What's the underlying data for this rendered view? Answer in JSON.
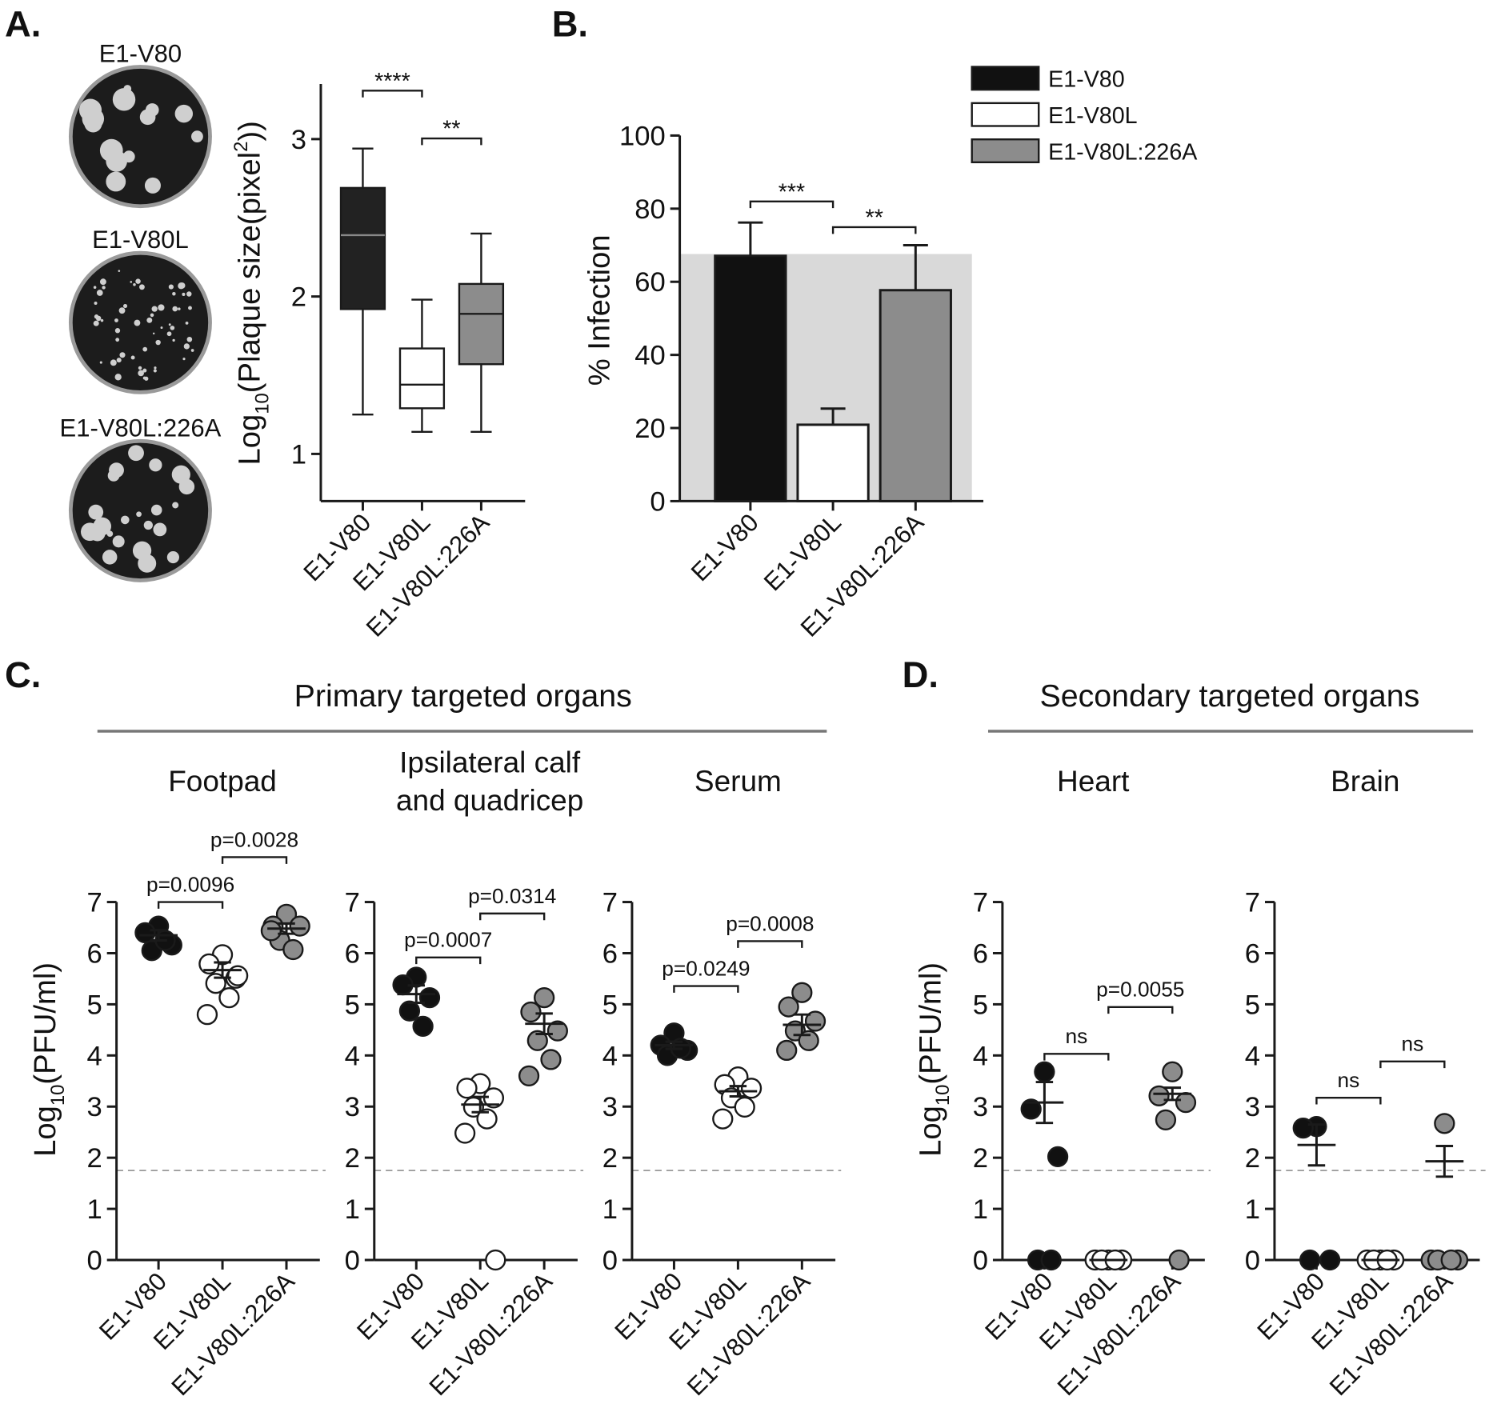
{
  "figure": {
    "panels": [
      "A.",
      "B.",
      "C.",
      "D."
    ],
    "groups": [
      "Primary targeted organs",
      "Secondary targeted organs"
    ]
  },
  "chart_data": [
    {
      "type": "box",
      "categories": [
        "E1-V80",
        "E1-V80L",
        "E1-V80L:226A"
      ],
      "colors": [
        "#222222",
        "#ffffff",
        "#8c8c8c"
      ],
      "min": [
        1.25,
        1.14,
        1.14
      ],
      "q1": [
        1.92,
        1.29,
        1.57
      ],
      "median": [
        2.39,
        1.44,
        1.89
      ],
      "q3": [
        2.69,
        1.67,
        2.08
      ],
      "max": [
        2.94,
        1.98,
        2.4
      ],
      "ylim": [
        0.7,
        3.35
      ],
      "yticks": [
        1,
        2,
        3
      ],
      "ylabel": [
        "Log",
        "10",
        "(Plaque size(pixel",
        "2",
        "))"
      ],
      "annotations": [
        "****",
        "**"
      ]
    },
    {
      "type": "bar",
      "categories": [
        "E1-V80",
        "E1-V80L",
        "E1-V80L:226A"
      ],
      "colors": [
        "#111111",
        "#ffffff",
        "#8c8c8c"
      ],
      "values": [
        67.1,
        20.9,
        57.7
      ],
      "errors": [
        9.1,
        4.4,
        12.3
      ],
      "reference": 67.6,
      "reference_color": "#d9d9d9",
      "ylim": [
        0,
        100
      ],
      "yticks": [
        0,
        20,
        40,
        60,
        80,
        100
      ],
      "ylabel": "% Infection",
      "legend": "upper-right",
      "annotations": [
        "***",
        "**"
      ]
    },
    {
      "type": "dot",
      "title": [
        "Footpad"
      ],
      "categories": [
        "E1-V80",
        "E1-V80L",
        "E1-V80L:226A"
      ],
      "colors": [
        "#111111",
        "#ffffff",
        "#8c8c8c"
      ],
      "points": [
        [
          6.53,
          6.4,
          6.16,
          6.05,
          6.25
        ],
        [
          5.97,
          5.79,
          5.51,
          5.41,
          5.13,
          4.8,
          5.56
        ],
        [
          6.76,
          6.53,
          6.53,
          6.25,
          6.07,
          6.44
        ]
      ],
      "means": [
        6.35,
        5.67,
        6.48
      ],
      "errors": [
        0.1,
        0.15,
        0.1
      ],
      "detection_limit": 1.75,
      "ylim": [
        0,
        7
      ],
      "yticks": [
        0,
        1,
        2,
        3,
        4,
        5,
        6,
        7
      ],
      "ylabel": [
        "Log",
        "10",
        "(PFU/ml)"
      ],
      "annotations": [
        "p=0.0096",
        "p=0.0028"
      ]
    },
    {
      "type": "dot",
      "title": [
        "Ipsilateral calf",
        "and quadricep"
      ],
      "categories": [
        "E1-V80",
        "E1-V80L",
        "E1-V80L:226A"
      ],
      "colors": [
        "#111111",
        "#ffffff",
        "#8c8c8c"
      ],
      "points": [
        [
          5.53,
          5.38,
          5.13,
          4.87,
          4.57
        ],
        [
          3.45,
          3.36,
          3.17,
          2.99,
          2.76,
          2.48,
          0
        ],
        [
          5.13,
          4.85,
          4.48,
          4.29,
          3.92,
          3.6
        ]
      ],
      "means": [
        5.2,
        3.04,
        4.62
      ],
      "errors": [
        0.17,
        0.15,
        0.2
      ],
      "detection_limit": 1.75,
      "ylim": [
        0,
        7
      ],
      "yticks": [
        0,
        1,
        2,
        3,
        4,
        5,
        6,
        7
      ],
      "annotations": [
        "p=0.0007",
        "p=0.0314"
      ]
    },
    {
      "type": "dot",
      "title": [
        "Serum"
      ],
      "categories": [
        "E1-V80",
        "E1-V80L",
        "E1-V80L:226A"
      ],
      "colors": [
        "#111111",
        "#ffffff",
        "#8c8c8c"
      ],
      "points": [
        [
          4.44,
          4.2,
          4.1,
          4.0,
          4.14
        ],
        [
          3.58,
          3.43,
          3.36,
          3.17,
          2.99,
          2.76
        ],
        [
          5.23,
          4.95,
          4.67,
          4.48,
          4.29,
          4.1
        ]
      ],
      "means": [
        4.2,
        3.3,
        4.6
      ],
      "errors": [
        0.07,
        0.1,
        0.2
      ],
      "detection_limit": 1.75,
      "ylim": [
        0,
        7
      ],
      "yticks": [
        0,
        1,
        2,
        3,
        4,
        5,
        6,
        7
      ],
      "annotations": [
        "p=0.0249",
        "p=0.0008"
      ]
    },
    {
      "type": "dot",
      "title": [
        "Heart"
      ],
      "categories": [
        "E1-V80",
        "E1-V80L",
        "E1-V80L:226A"
      ],
      "colors": [
        "#111111",
        "#ffffff",
        "#8c8c8c"
      ],
      "points": [
        [
          3.68,
          2.95,
          2.02,
          0,
          0
        ],
        [
          0,
          0,
          0,
          0,
          0
        ],
        [
          3.68,
          3.21,
          3.08,
          2.74,
          0
        ]
      ],
      "means": [
        3.08,
        0,
        3.25
      ],
      "errors": [
        0.4,
        0,
        0.12
      ],
      "detection_limit": 1.75,
      "ylim": [
        0,
        7
      ],
      "yticks": [
        0,
        1,
        2,
        3,
        4,
        5,
        6,
        7
      ],
      "ylabel": [
        "Log",
        "10",
        "(PFU/ml)"
      ],
      "annotations": [
        "ns",
        "p=0.0055"
      ]
    },
    {
      "type": "dot",
      "title": [
        "Brain"
      ],
      "categories": [
        "E1-V80",
        "E1-V80L",
        "E1-V80L:226A"
      ],
      "colors": [
        "#111111",
        "#ffffff",
        "#8c8c8c"
      ],
      "points": [
        [
          2.61,
          2.58,
          0,
          0
        ],
        [
          0,
          0,
          0,
          0,
          0
        ],
        [
          2.67,
          0,
          0,
          0,
          0
        ]
      ],
      "means": [
        2.25,
        0,
        1.93
      ],
      "errors": [
        0.4,
        0,
        0.3
      ],
      "detection_limit": 1.75,
      "ylim": [
        0,
        7
      ],
      "yticks": [
        0,
        1,
        2,
        3,
        4,
        5,
        6,
        7
      ],
      "annotations": [
        "ns",
        "ns"
      ]
    }
  ]
}
